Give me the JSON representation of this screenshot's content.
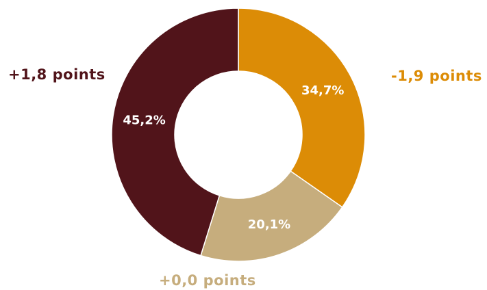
{
  "chart_data": {
    "type": "pie",
    "donut": true,
    "title": "",
    "slices": [
      {
        "value": 34.7,
        "label": "34,7%",
        "change": "-1,9 points",
        "color": "#dc8c06"
      },
      {
        "value": 20.1,
        "label": "20,1%",
        "change": "+0,0 points",
        "color": "#c6ad7d"
      },
      {
        "value": 45.2,
        "label": "45,2%",
        "change": "+1,8 points",
        "color": "#51141a"
      }
    ]
  }
}
